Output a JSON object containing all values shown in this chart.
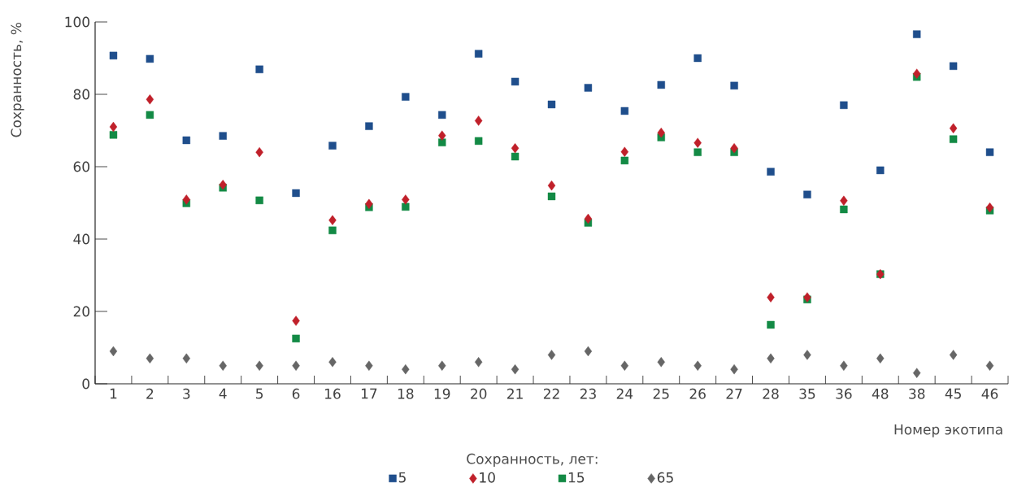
{
  "chart_data": {
    "type": "scatter",
    "xlabel": "Номер экотипа",
    "ylabel": "Сохранность, %",
    "legend_title": "Сохранность, лет:",
    "legend": "bottom",
    "grid": false,
    "categories": [
      "1",
      "2",
      "3",
      "4",
      "5",
      "6",
      "16",
      "17",
      "18",
      "19",
      "20",
      "21",
      "22",
      "23",
      "24",
      "25",
      "26",
      "27",
      "28",
      "35",
      "36",
      "48",
      "38",
      "45",
      "46"
    ],
    "ylim": [
      0,
      100
    ],
    "yticks": [
      0,
      20,
      40,
      60,
      80,
      100
    ],
    "series": [
      {
        "name": "5",
        "color": "#1f4e8c",
        "marker": "square",
        "values": [
          90.7,
          89.8,
          67.3,
          68.5,
          86.9,
          52.7,
          65.8,
          71.2,
          79.3,
          74.3,
          91.2,
          83.5,
          77.2,
          81.8,
          75.4,
          82.6,
          90,
          82.4,
          58.6,
          52.3,
          77,
          59,
          96.6,
          87.8,
          64
        ]
      },
      {
        "name": "10",
        "color": "#c0202a",
        "marker": "diamond",
        "values": [
          71,
          78.6,
          50.9,
          55,
          64,
          17.4,
          45.2,
          49.7,
          50.9,
          68.6,
          72.7,
          65.1,
          54.8,
          45.6,
          64.1,
          69.4,
          66.6,
          65.1,
          23.9,
          23.9,
          50.6,
          30.3,
          85.7,
          70.6,
          48.7
        ]
      },
      {
        "name": "15",
        "color": "#138a45",
        "marker": "square",
        "values": [
          68.8,
          74.3,
          49.9,
          54.2,
          50.7,
          12.5,
          42.4,
          48.8,
          48.9,
          66.7,
          67.1,
          62.8,
          51.8,
          44.5,
          61.7,
          68.1,
          64,
          64,
          16.3,
          23.3,
          48.2,
          30.3,
          84.8,
          67.6,
          47.9
        ]
      },
      {
        "name": "65",
        "color": "#666666",
        "marker": "diamond",
        "values": [
          9,
          7,
          7,
          5,
          5,
          5,
          6,
          5,
          4,
          5,
          6,
          4,
          8,
          9,
          5,
          6,
          5,
          4,
          7,
          8,
          5,
          7,
          3,
          8,
          5
        ]
      }
    ]
  }
}
